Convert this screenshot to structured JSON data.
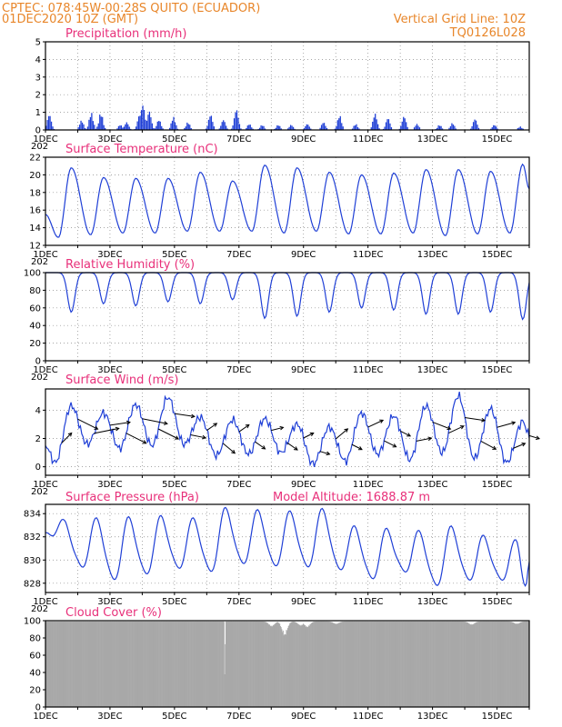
{
  "header": {
    "line1": "CPTEC:   078:45W-00:28S   QUITO (ECUADOR)",
    "line2": "01DEC2020 10Z (GMT)",
    "grid_note": "Vertical Grid Line: 10Z",
    "code": "TQ0126L028"
  },
  "model_altitude": "Model Altitude: 1688.87 m",
  "colors": {
    "header": "#e8862a",
    "title": "#e8307a",
    "series": "#1f3fd6",
    "cloud": "#a8a8a8"
  },
  "x_axis": {
    "start_day": 1,
    "end_day": 16,
    "tick_labels": [
      "1DEC",
      "3DEC",
      "5DEC",
      "7DEC",
      "9DEC",
      "11DEC",
      "13DEC",
      "15DEC"
    ],
    "year_fragment": "202"
  },
  "chart_data": [
    {
      "type": "bar",
      "title": "Precipitation (mm/h)",
      "ylim": [
        0,
        5
      ],
      "yticks": [
        0,
        1,
        2,
        3,
        4,
        5
      ],
      "grid": true,
      "peaks": [
        {
          "day": 1.1,
          "value": 0.9
        },
        {
          "day": 2.1,
          "value": 0.55
        },
        {
          "day": 2.4,
          "value": 1.0
        },
        {
          "day": 2.7,
          "value": 1.0
        },
        {
          "day": 3.3,
          "value": 0.3
        },
        {
          "day": 3.5,
          "value": 0.45
        },
        {
          "day": 3.9,
          "value": 0.9
        },
        {
          "day": 4.0,
          "value": 1.5
        },
        {
          "day": 4.2,
          "value": 1.1
        },
        {
          "day": 4.5,
          "value": 0.6
        },
        {
          "day": 4.95,
          "value": 0.75
        },
        {
          "day": 5.4,
          "value": 0.45
        },
        {
          "day": 6.1,
          "value": 0.9
        },
        {
          "day": 6.5,
          "value": 0.6
        },
        {
          "day": 6.9,
          "value": 1.2
        },
        {
          "day": 7.3,
          "value": 0.35
        },
        {
          "day": 7.7,
          "value": 0.3
        },
        {
          "day": 8.2,
          "value": 0.3
        },
        {
          "day": 8.6,
          "value": 0.3
        },
        {
          "day": 9.1,
          "value": 0.35
        },
        {
          "day": 9.6,
          "value": 0.45
        },
        {
          "day": 10.1,
          "value": 0.85
        },
        {
          "day": 10.6,
          "value": 0.35
        },
        {
          "day": 11.2,
          "value": 0.95
        },
        {
          "day": 11.6,
          "value": 0.7
        },
        {
          "day": 12.1,
          "value": 0.8
        },
        {
          "day": 12.5,
          "value": 0.35
        },
        {
          "day": 13.2,
          "value": 0.3
        },
        {
          "day": 13.6,
          "value": 0.4
        },
        {
          "day": 14.3,
          "value": 0.65
        },
        {
          "day": 14.9,
          "value": 0.3
        },
        {
          "day": 15.7,
          "value": 0.2
        }
      ]
    },
    {
      "type": "line",
      "title": "Surface Temperature (nC)",
      "ylim": [
        12,
        22
      ],
      "yticks": [
        12,
        14,
        16,
        18,
        20,
        22
      ],
      "grid": true,
      "peaks": [
        {
          "day": 1.8,
          "value": 20.8
        },
        {
          "day": 2.8,
          "value": 19.7
        },
        {
          "day": 3.8,
          "value": 19.6
        },
        {
          "day": 4.8,
          "value": 19.6
        },
        {
          "day": 5.8,
          "value": 20.3
        },
        {
          "day": 6.8,
          "value": 19.3
        },
        {
          "day": 7.8,
          "value": 21.1
        },
        {
          "day": 8.8,
          "value": 20.8
        },
        {
          "day": 9.8,
          "value": 20.3
        },
        {
          "day": 10.8,
          "value": 20.0
        },
        {
          "day": 11.8,
          "value": 20.2
        },
        {
          "day": 12.8,
          "value": 20.6
        },
        {
          "day": 13.8,
          "value": 20.6
        },
        {
          "day": 14.8,
          "value": 20.4
        },
        {
          "day": 15.8,
          "value": 21.2
        }
      ],
      "mins": [
        {
          "day": 1.4,
          "value": 12.9
        },
        {
          "day": 2.4,
          "value": 13.2
        },
        {
          "day": 3.4,
          "value": 13.4
        },
        {
          "day": 4.4,
          "value": 13.4
        },
        {
          "day": 5.4,
          "value": 13.6
        },
        {
          "day": 6.4,
          "value": 13.6
        },
        {
          "day": 7.4,
          "value": 13.6
        },
        {
          "day": 8.4,
          "value": 13.4
        },
        {
          "day": 9.4,
          "value": 13.6
        },
        {
          "day": 10.4,
          "value": 13.3
        },
        {
          "day": 11.4,
          "value": 13.3
        },
        {
          "day": 12.4,
          "value": 13.4
        },
        {
          "day": 13.4,
          "value": 13.1
        },
        {
          "day": 14.4,
          "value": 13.3
        },
        {
          "day": 15.4,
          "value": 13.4
        }
      ]
    },
    {
      "type": "line",
      "title": "Relative Humidity (%)",
      "ylim": [
        0,
        100
      ],
      "yticks": [
        0,
        20,
        40,
        60,
        80,
        100
      ],
      "grid": true,
      "mins": [
        {
          "day": 1.8,
          "value": 62
        },
        {
          "day": 2.8,
          "value": 70
        },
        {
          "day": 3.8,
          "value": 68
        },
        {
          "day": 4.8,
          "value": 72
        },
        {
          "day": 5.8,
          "value": 70
        },
        {
          "day": 6.8,
          "value": 74
        },
        {
          "day": 7.8,
          "value": 56
        },
        {
          "day": 8.8,
          "value": 58
        },
        {
          "day": 9.8,
          "value": 62
        },
        {
          "day": 10.8,
          "value": 66
        },
        {
          "day": 11.8,
          "value": 64
        },
        {
          "day": 12.8,
          "value": 60
        },
        {
          "day": 13.8,
          "value": 60
        },
        {
          "day": 14.8,
          "value": 62
        },
        {
          "day": 15.8,
          "value": 55
        }
      ]
    },
    {
      "type": "line",
      "title": "Surface Wind (m/s)",
      "ylim": [
        -0.6,
        5.5
      ],
      "yticks": [
        0,
        2,
        4
      ],
      "grid": true,
      "peaks": [
        {
          "day": 1.8,
          "value": 4.3
        },
        {
          "day": 2.8,
          "value": 3.8
        },
        {
          "day": 3.8,
          "value": 4.4
        },
        {
          "day": 4.8,
          "value": 4.9
        },
        {
          "day": 5.8,
          "value": 3.5
        },
        {
          "day": 6.8,
          "value": 3.3
        },
        {
          "day": 7.8,
          "value": 3.4
        },
        {
          "day": 8.8,
          "value": 3.0
        },
        {
          "day": 9.8,
          "value": 2.8
        },
        {
          "day": 10.8,
          "value": 3.8
        },
        {
          "day": 11.8,
          "value": 3.6
        },
        {
          "day": 12.8,
          "value": 4.3
        },
        {
          "day": 13.8,
          "value": 5.0
        },
        {
          "day": 14.8,
          "value": 4.1
        },
        {
          "day": 15.8,
          "value": 3.2
        }
      ],
      "mins": [
        {
          "day": 1.3,
          "value": 0.3
        },
        {
          "day": 2.3,
          "value": 1.6
        },
        {
          "day": 3.3,
          "value": 1.3
        },
        {
          "day": 4.3,
          "value": 1.5
        },
        {
          "day": 5.3,
          "value": 1.6
        },
        {
          "day": 6.3,
          "value": 0.8
        },
        {
          "day": 7.3,
          "value": 0.9
        },
        {
          "day": 8.3,
          "value": 1.0
        },
        {
          "day": 9.3,
          "value": 0.2
        },
        {
          "day": 10.3,
          "value": 0.4
        },
        {
          "day": 11.3,
          "value": 0.9
        },
        {
          "day": 12.3,
          "value": 0.5
        },
        {
          "day": 13.3,
          "value": 1.0
        },
        {
          "day": 14.3,
          "value": 0.6
        },
        {
          "day": 15.3,
          "value": 0.3
        }
      ],
      "vectors": [
        {
          "day": 1.5,
          "u": 1,
          "v": 1
        },
        {
          "day": 2.0,
          "u": 2,
          "v": -1
        },
        {
          "day": 2.5,
          "u": 2.5,
          "v": 0.5
        },
        {
          "day": 3.0,
          "u": 2,
          "v": 0.3
        },
        {
          "day": 3.5,
          "u": 2,
          "v": -1
        },
        {
          "day": 4.0,
          "u": 2.5,
          "v": -0.5
        },
        {
          "day": 4.5,
          "u": 2,
          "v": -1
        },
        {
          "day": 5.0,
          "u": 2,
          "v": -0.3
        },
        {
          "day": 5.5,
          "u": 1.5,
          "v": -0.3
        },
        {
          "day": 6.0,
          "u": 1,
          "v": 0.7
        },
        {
          "day": 6.5,
          "u": 1.2,
          "v": -1
        },
        {
          "day": 7.0,
          "u": 1,
          "v": 0.7
        },
        {
          "day": 7.5,
          "u": 1,
          "v": -0.7
        },
        {
          "day": 8.0,
          "u": 1.2,
          "v": 0.3
        },
        {
          "day": 8.5,
          "u": 1,
          "v": -0.7
        },
        {
          "day": 9.0,
          "u": 1,
          "v": 0.5
        },
        {
          "day": 9.5,
          "u": 1,
          "v": -0.3
        },
        {
          "day": 10.0,
          "u": 1.2,
          "v": 1
        },
        {
          "day": 10.5,
          "u": 1,
          "v": -0.5
        },
        {
          "day": 11.0,
          "u": 1.5,
          "v": 0.7
        },
        {
          "day": 11.5,
          "u": 1.2,
          "v": -0.6
        },
        {
          "day": 12.0,
          "u": 1,
          "v": -0.5
        },
        {
          "day": 12.5,
          "u": 1.5,
          "v": 0.3
        },
        {
          "day": 13.0,
          "u": 1.8,
          "v": -0.7
        },
        {
          "day": 13.5,
          "u": 1.5,
          "v": 0.7
        },
        {
          "day": 14.0,
          "u": 2,
          "v": -0.3
        },
        {
          "day": 14.5,
          "u": 1.5,
          "v": -0.8
        },
        {
          "day": 15.0,
          "u": 1.8,
          "v": 0.5
        },
        {
          "day": 15.5,
          "u": 1.2,
          "v": 0.5
        },
        {
          "day": 16.0,
          "u": 1,
          "v": -0.3
        }
      ]
    },
    {
      "type": "line",
      "title": "Surface Pressure (hPa)",
      "ylim": [
        827.2,
        834.8
      ],
      "yticks": [
        828,
        830,
        832,
        834
      ],
      "grid": true,
      "peaks": [
        {
          "day": 1.6,
          "value": 833.2
        },
        {
          "day": 2.6,
          "value": 833.4
        },
        {
          "day": 3.6,
          "value": 833.5
        },
        {
          "day": 4.6,
          "value": 833.6
        },
        {
          "day": 5.6,
          "value": 833.4
        },
        {
          "day": 6.6,
          "value": 834.3
        },
        {
          "day": 7.6,
          "value": 834.1
        },
        {
          "day": 8.6,
          "value": 834.0
        },
        {
          "day": 9.6,
          "value": 834.2
        },
        {
          "day": 10.6,
          "value": 832.7
        },
        {
          "day": 11.6,
          "value": 832.5
        },
        {
          "day": 12.6,
          "value": 832.3
        },
        {
          "day": 13.6,
          "value": 832.7
        },
        {
          "day": 14.6,
          "value": 831.9
        },
        {
          "day": 15.6,
          "value": 831.5
        }
      ],
      "mins": [
        {
          "day": 2.1,
          "value": 829.3
        },
        {
          "day": 3.1,
          "value": 828.2
        },
        {
          "day": 4.1,
          "value": 828.7
        },
        {
          "day": 5.1,
          "value": 829.2
        },
        {
          "day": 6.1,
          "value": 828.9
        },
        {
          "day": 7.1,
          "value": 829.6
        },
        {
          "day": 8.1,
          "value": 829.4
        },
        {
          "day": 9.1,
          "value": 829.3
        },
        {
          "day": 10.1,
          "value": 829.1
        },
        {
          "day": 11.1,
          "value": 828.3
        },
        {
          "day": 12.1,
          "value": 828.9
        },
        {
          "day": 13.1,
          "value": 827.7
        },
        {
          "day": 14.1,
          "value": 828.2
        },
        {
          "day": 15.1,
          "value": 828.2
        },
        {
          "day": 15.9,
          "value": 827.8
        }
      ]
    },
    {
      "type": "area",
      "title": "Cloud Cover (%)",
      "ylim": [
        0,
        100
      ],
      "yticks": [
        0,
        20,
        40,
        60,
        80,
        100
      ],
      "grid": false,
      "base_value": 99,
      "dips": [
        {
          "day": 6.55,
          "value": 0
        },
        {
          "day": 8.0,
          "value": 93
        },
        {
          "day": 8.4,
          "value": 82
        },
        {
          "day": 8.9,
          "value": 94
        },
        {
          "day": 9.1,
          "value": 92
        },
        {
          "day": 10.0,
          "value": 96
        },
        {
          "day": 14.2,
          "value": 95
        },
        {
          "day": 15.6,
          "value": 96
        }
      ]
    }
  ]
}
